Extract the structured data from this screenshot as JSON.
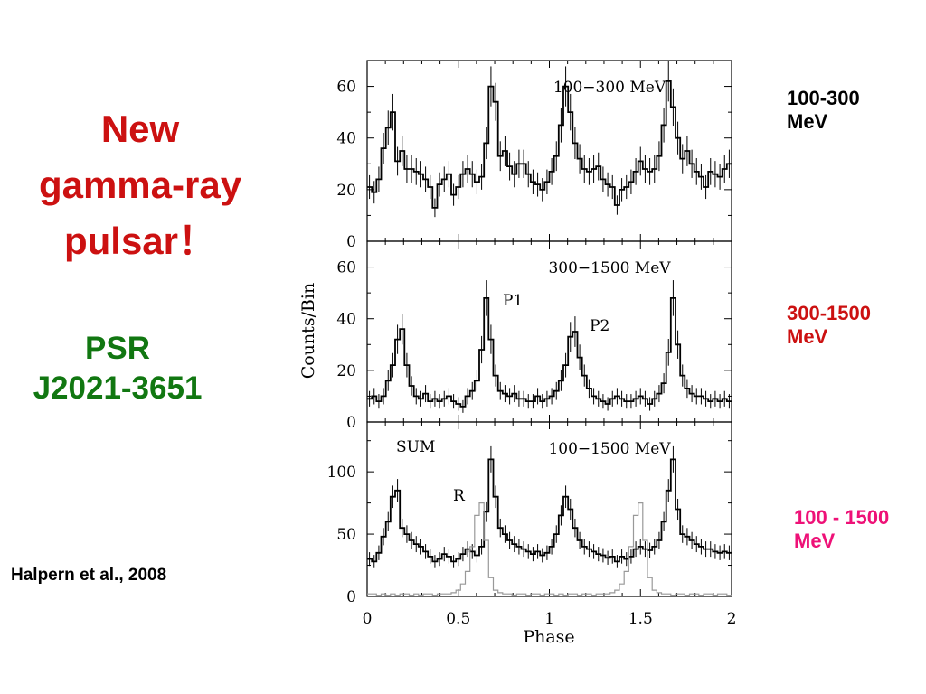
{
  "slide": {
    "title_lines": [
      "New",
      "gamma-ray",
      "pulsar！"
    ],
    "psr_lines": [
      "PSR",
      "J2021-3651"
    ],
    "citation": "Halpern et al., 2008",
    "side_labels": [
      {
        "lines": [
          "100-300",
          "MeV"
        ],
        "color": "#000000"
      },
      {
        "lines": [
          "300-1500",
          "MeV"
        ],
        "color": "#cc1111"
      },
      {
        "lines": [
          "100 - 1500",
          "MeV"
        ],
        "color": "#ee1177"
      }
    ],
    "colors": {
      "title": "#cc1111",
      "psr": "#117711"
    }
  },
  "chart_data": [
    {
      "type": "line",
      "title": "100−300 MeV",
      "xlabel": "Phase",
      "ylabel": "Counts/Bin",
      "xlim": [
        0,
        2
      ],
      "ylim": [
        0,
        70
      ],
      "yticks": [
        "0",
        "20",
        "40",
        "60"
      ],
      "series": [
        {
          "values": [
            21,
            19,
            24,
            36,
            44,
            50,
            31,
            35,
            28,
            28,
            27,
            26,
            24,
            21,
            13,
            22,
            24,
            26,
            18,
            21,
            26,
            28,
            26,
            23,
            25,
            38,
            60,
            54,
            33,
            35,
            29,
            26,
            30,
            30,
            26,
            23,
            22,
            20,
            23,
            27,
            33,
            45,
            60,
            50,
            38,
            32,
            28,
            27,
            28,
            29,
            24,
            22,
            21,
            14,
            20,
            21,
            23,
            27,
            31,
            28,
            27,
            28,
            33,
            45,
            62,
            52,
            40,
            32,
            35,
            30,
            27,
            25,
            21,
            27,
            26,
            25,
            28,
            30
          ]
        }
      ],
      "error_bars": true
    },
    {
      "type": "line",
      "title": "300−1500 MeV",
      "xlabel": "Phase",
      "ylabel": "Counts/Bin",
      "xlim": [
        0,
        2
      ],
      "ylim": [
        0,
        70
      ],
      "yticks": [
        "0",
        "20",
        "40",
        "60"
      ],
      "annotations": [
        "P1",
        "P2"
      ],
      "series": [
        {
          "values": [
            9,
            10,
            8,
            10,
            16,
            22,
            32,
            36,
            22,
            14,
            10,
            9,
            11,
            8,
            9,
            8,
            9,
            10,
            8,
            7,
            6,
            10,
            12,
            16,
            28,
            48,
            32,
            18,
            12,
            11,
            10,
            11,
            9,
            9,
            8,
            8,
            10,
            8,
            9,
            10,
            12,
            16,
            22,
            33,
            35,
            25,
            18,
            13,
            10,
            9,
            8,
            7,
            9,
            10,
            9,
            8,
            8,
            9,
            10,
            9,
            7,
            9,
            11,
            15,
            27,
            48,
            30,
            18,
            13,
            11,
            10,
            10,
            9,
            8,
            9,
            8,
            9,
            8
          ]
        }
      ],
      "error_bars": true
    },
    {
      "type": "line",
      "title": "100−1500 MeV",
      "subtitle": "SUM",
      "xlabel": "Phase",
      "ylabel": "Counts/Bin",
      "xlim": [
        0,
        2
      ],
      "ylim": [
        0,
        140
      ],
      "xticks": [
        "0",
        "0.5",
        "1",
        "1.5",
        "2"
      ],
      "yticks": [
        "0",
        "50",
        "100"
      ],
      "annotations": [
        "R"
      ],
      "series": [
        {
          "values": [
            30,
            28,
            35,
            48,
            60,
            80,
            85,
            55,
            50,
            45,
            42,
            40,
            36,
            32,
            28,
            30,
            34,
            32,
            28,
            30,
            34,
            38,
            36,
            33,
            40,
            68,
            110,
            80,
            55,
            50,
            45,
            42,
            40,
            38,
            36,
            34,
            36,
            33,
            35,
            40,
            50,
            65,
            80,
            70,
            55,
            45,
            40,
            38,
            36,
            34,
            33,
            31,
            32,
            28,
            32,
            30,
            32,
            38,
            40,
            38,
            37,
            40,
            45,
            60,
            85,
            110,
            70,
            50,
            48,
            45,
            42,
            40,
            38,
            38,
            36,
            35,
            36,
            35
          ]
        },
        {
          "values": [
            2,
            2,
            1,
            2,
            1,
            2,
            1,
            2,
            2,
            1,
            2,
            1,
            2,
            2,
            1,
            2,
            2,
            2,
            3,
            5,
            10,
            20,
            40,
            65,
            75,
            45,
            15,
            5,
            3,
            2,
            2,
            1,
            2,
            2,
            1,
            2,
            2,
            1,
            2,
            2,
            1,
            2,
            1,
            2,
            2,
            1,
            2,
            2,
            1,
            2,
            2,
            2,
            3,
            5,
            10,
            20,
            40,
            65,
            75,
            45,
            15,
            5,
            3,
            2,
            2,
            1,
            2,
            2,
            1,
            2,
            2,
            1,
            2,
            2,
            1,
            2,
            2,
            1
          ]
        }
      ],
      "error_bars": true
    }
  ]
}
